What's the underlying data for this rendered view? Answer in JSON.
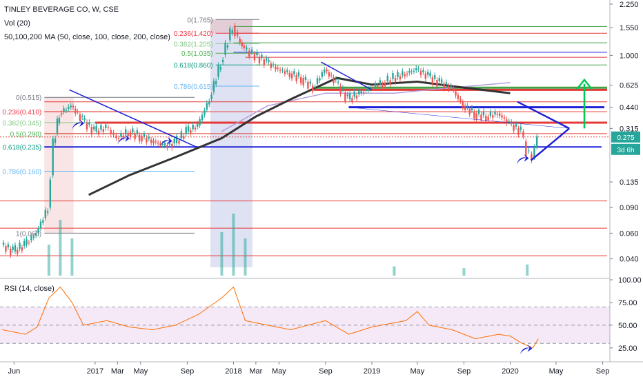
{
  "chart_data": [
    {
      "type": "candlestick",
      "title": "TINLEY BEVERAGE CO, W, CSE",
      "indicator_labels": [
        "Vol (20)",
        "50,100,200 MA (50, close, 100, close, 200, close)"
      ],
      "y_scale": "log",
      "ylim": [
        0.03,
        2.25
      ],
      "y_ticks": [
        "2.250",
        "1.550",
        "1.000",
        "0.625",
        "0.440",
        "0.315",
        "0.135",
        "0.090",
        "0.060",
        "0.040"
      ],
      "x_ticks": [
        "Jun",
        "2017",
        "Mar",
        "May",
        "Sep",
        "2018",
        "Mar",
        "May",
        "Sep",
        "2019",
        "May",
        "Sep",
        "2020",
        "May",
        "Sep"
      ],
      "price_badges": [
        {
          "text": "0.275",
          "color": "#26a69a"
        },
        {
          "text": "3d 6h",
          "color": "#26a69a"
        }
      ],
      "fib_sets": [
        {
          "levels": [
            {
              "label": "0(0.515)",
              "value": 0.515,
              "color": "#787b86"
            },
            {
              "label": "0.236(0.410)",
              "value": 0.41,
              "color": "#f23645"
            },
            {
              "label": "0.382(0.345)",
              "value": 0.345,
              "color": "#81c784"
            },
            {
              "label": "0.5(0.290)",
              "value": 0.29,
              "color": "#4caf50"
            },
            {
              "label": "0.618(0.235)",
              "value": 0.235,
              "color": "#089981"
            },
            {
              "label": "0.786(0.160)",
              "value": 0.16,
              "color": "#64b5f6"
            },
            {
              "label": "1(0.060)",
              "value": 0.06,
              "color": "#787b86"
            }
          ]
        },
        {
          "levels": [
            {
              "label": "0(1.765)",
              "value": 1.765,
              "color": "#787b86"
            },
            {
              "label": "0.236(1.420)",
              "value": 1.42,
              "color": "#f23645"
            },
            {
              "label": "0.382(1.205)",
              "value": 1.205,
              "color": "#81c784"
            },
            {
              "label": "0.5(1.035)",
              "value": 1.035,
              "color": "#4caf50"
            },
            {
              "label": "0.618(0.860)",
              "value": 0.86,
              "color": "#089981"
            },
            {
              "label": "0.786(0.615)",
              "value": 0.615,
              "color": "#64b5f6"
            }
          ]
        }
      ],
      "ohlc_weekly_approx": [
        {
          "d": "2016-05-01",
          "c": 0.05
        },
        {
          "d": "2016-06-01",
          "c": 0.045
        },
        {
          "d": "2016-07-01",
          "c": 0.05
        },
        {
          "d": "2016-08-01",
          "c": 0.06
        },
        {
          "d": "2016-09-01",
          "c": 0.09
        },
        {
          "d": "2016-09-15",
          "c": 0.25
        },
        {
          "d": "2016-10-01",
          "c": 0.4
        },
        {
          "d": "2016-11-01",
          "c": 0.45
        },
        {
          "d": "2016-12-01",
          "c": 0.36
        },
        {
          "d": "2017-01-01",
          "c": 0.3
        },
        {
          "d": "2017-02-01",
          "c": 0.32
        },
        {
          "d": "2017-03-01",
          "c": 0.27
        },
        {
          "d": "2017-04-01",
          "c": 0.3
        },
        {
          "d": "2017-05-01",
          "c": 0.28
        },
        {
          "d": "2017-06-01",
          "c": 0.26
        },
        {
          "d": "2017-07-01",
          "c": 0.24
        },
        {
          "d": "2017-08-01",
          "c": 0.25
        },
        {
          "d": "2017-09-01",
          "c": 0.3
        },
        {
          "d": "2017-10-01",
          "c": 0.33
        },
        {
          "d": "2017-11-01",
          "c": 0.5
        },
        {
          "d": "2017-12-01",
          "c": 0.9
        },
        {
          "d": "2018-01-01",
          "c": 1.6
        },
        {
          "d": "2018-01-15",
          "c": 1.3
        },
        {
          "d": "2018-02-01",
          "c": 1.1
        },
        {
          "d": "2018-03-01",
          "c": 1.0
        },
        {
          "d": "2018-04-01",
          "c": 0.9
        },
        {
          "d": "2018-05-01",
          "c": 0.8
        },
        {
          "d": "2018-06-01",
          "c": 0.75
        },
        {
          "d": "2018-07-01",
          "c": 0.7
        },
        {
          "d": "2018-08-01",
          "c": 0.6
        },
        {
          "d": "2018-09-01",
          "c": 0.8
        },
        {
          "d": "2018-10-01",
          "c": 0.65
        },
        {
          "d": "2018-11-01",
          "c": 0.5
        },
        {
          "d": "2018-12-01",
          "c": 0.55
        },
        {
          "d": "2019-01-01",
          "c": 0.6
        },
        {
          "d": "2019-02-01",
          "c": 0.65
        },
        {
          "d": "2019-03-01",
          "c": 0.7
        },
        {
          "d": "2019-04-01",
          "c": 0.75
        },
        {
          "d": "2019-05-01",
          "c": 0.8
        },
        {
          "d": "2019-06-01",
          "c": 0.72
        },
        {
          "d": "2019-07-01",
          "c": 0.65
        },
        {
          "d": "2019-08-01",
          "c": 0.6
        },
        {
          "d": "2019-09-01",
          "c": 0.45
        },
        {
          "d": "2019-10-01",
          "c": 0.4
        },
        {
          "d": "2019-11-01",
          "c": 0.38
        },
        {
          "d": "2019-12-01",
          "c": 0.4
        },
        {
          "d": "2020-01-01",
          "c": 0.34
        },
        {
          "d": "2020-02-01",
          "c": 0.3
        },
        {
          "d": "2020-02-15",
          "c": 0.22
        },
        {
          "d": "2020-03-01",
          "c": 0.2
        },
        {
          "d": "2020-03-15",
          "c": 0.275
        }
      ],
      "volume_approx": [
        {
          "d": "2016-09-01",
          "v": 0.5
        },
        {
          "d": "2016-10-01",
          "v": 0.9
        },
        {
          "d": "2016-11-01",
          "v": 0.6
        },
        {
          "d": "2017-12-01",
          "v": 0.7
        },
        {
          "d": "2018-01-01",
          "v": 1.0
        },
        {
          "d": "2018-02-01",
          "v": 0.6
        },
        {
          "d": "2019-03-01",
          "v": 0.15
        },
        {
          "d": "2019-09-01",
          "v": 0.12
        },
        {
          "d": "2020-02-15",
          "v": 0.18
        }
      ],
      "ma_200_approx": [
        {
          "d": "2016-12-15",
          "v": 0.11
        },
        {
          "d": "2017-04-01",
          "v": 0.15
        },
        {
          "d": "2017-08-01",
          "v": 0.2
        },
        {
          "d": "2017-12-01",
          "v": 0.27
        },
        {
          "d": "2018-03-01",
          "v": 0.38
        },
        {
          "d": "2018-06-01",
          "v": 0.5
        },
        {
          "d": "2018-10-01",
          "v": 0.7
        },
        {
          "d": "2019-01-01",
          "v": 0.63
        },
        {
          "d": "2019-05-01",
          "v": 0.66
        },
        {
          "d": "2019-09-01",
          "v": 0.6
        },
        {
          "d": "2020-01-01",
          "v": 0.55
        }
      ],
      "ma_100_approx": [
        {
          "d": "2017-12-01",
          "v": 0.3
        },
        {
          "d": "2018-04-01",
          "v": 0.45
        },
        {
          "d": "2018-09-01",
          "v": 0.55
        },
        {
          "d": "2019-03-01",
          "v": 0.55
        },
        {
          "d": "2019-08-01",
          "v": 0.6
        },
        {
          "d": "2020-01-01",
          "v": 0.65
        }
      ],
      "colors": {
        "up": "#26a69a",
        "down": "#ef5350",
        "ma200": "#333333",
        "ma100": "#b39ddb",
        "trendline": "#1e22d6",
        "hline_red": "#e53935",
        "hline_green": "#43a047",
        "target_arrow": "#00c853"
      }
    },
    {
      "type": "line",
      "title": "RSI (14, close)",
      "ylim": [
        15,
        100
      ],
      "y_ticks": [
        "100.00",
        "75.00",
        "50.00",
        "25.00"
      ],
      "band": [
        30,
        70
      ],
      "color": "#ff6d00",
      "band_color": "#9c27b0",
      "values_approx": [
        {
          "d": "2016-05-01",
          "v": 45
        },
        {
          "d": "2016-07-01",
          "v": 40
        },
        {
          "d": "2016-08-01",
          "v": 48
        },
        {
          "d": "2016-09-01",
          "v": 80
        },
        {
          "d": "2016-10-01",
          "v": 92
        },
        {
          "d": "2016-11-01",
          "v": 75
        },
        {
          "d": "2016-12-01",
          "v": 50
        },
        {
          "d": "2017-02-01",
          "v": 55
        },
        {
          "d": "2017-04-01",
          "v": 48
        },
        {
          "d": "2017-06-01",
          "v": 45
        },
        {
          "d": "2017-08-01",
          "v": 50
        },
        {
          "d": "2017-10-01",
          "v": 62
        },
        {
          "d": "2017-12-01",
          "v": 80
        },
        {
          "d": "2018-01-01",
          "v": 92
        },
        {
          "d": "2018-02-01",
          "v": 55
        },
        {
          "d": "2018-04-01",
          "v": 50
        },
        {
          "d": "2018-06-01",
          "v": 45
        },
        {
          "d": "2018-09-01",
          "v": 55
        },
        {
          "d": "2018-11-01",
          "v": 40
        },
        {
          "d": "2019-01-01",
          "v": 48
        },
        {
          "d": "2019-04-01",
          "v": 55
        },
        {
          "d": "2019-05-01",
          "v": 65
        },
        {
          "d": "2019-06-01",
          "v": 50
        },
        {
          "d": "2019-08-01",
          "v": 45
        },
        {
          "d": "2019-10-01",
          "v": 35
        },
        {
          "d": "2019-12-01",
          "v": 40
        },
        {
          "d": "2020-01-01",
          "v": 38
        },
        {
          "d": "2020-02-01",
          "v": 30
        },
        {
          "d": "2020-03-01",
          "v": 25
        },
        {
          "d": "2020-03-15",
          "v": 35
        }
      ]
    }
  ]
}
